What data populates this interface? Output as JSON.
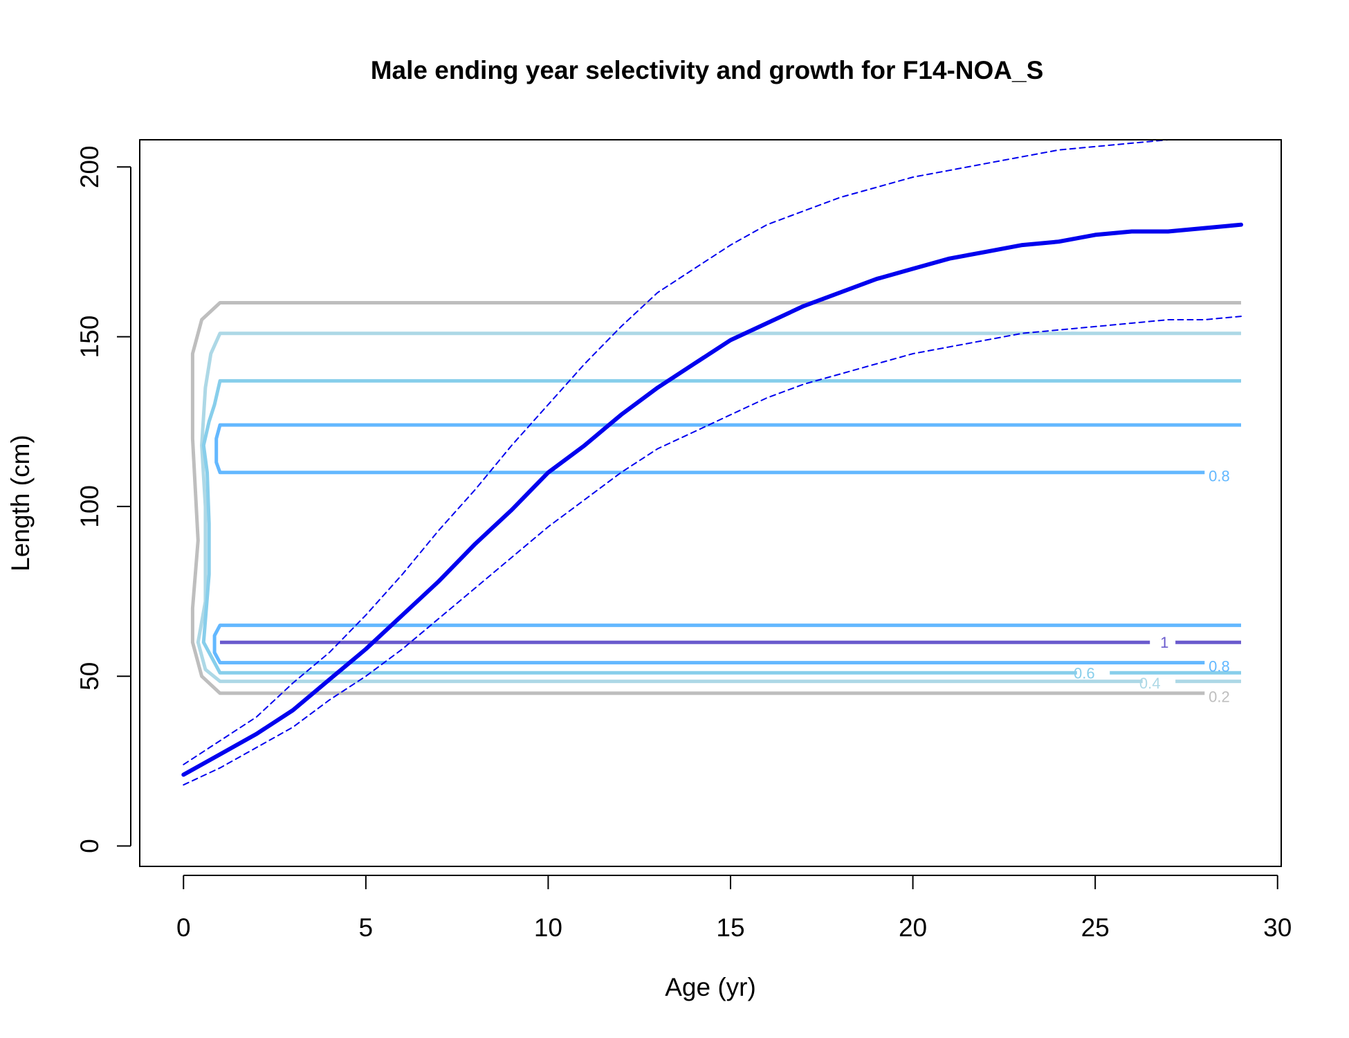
{
  "chart_data": {
    "type": "line",
    "title": "Male ending year selectivity and growth for F14-NOA_S",
    "xlabel": "Age (yr)",
    "ylabel": "Length (cm)",
    "xlim": [
      -1.2,
      30.1
    ],
    "ylim": [
      -6,
      208
    ],
    "x_ticks": [
      0,
      5,
      10,
      15,
      20,
      25,
      30
    ],
    "y_ticks": [
      0,
      50,
      100,
      150,
      200
    ],
    "grid": false,
    "colors": {
      "mean": "#0000ee",
      "ci": "#0000ee",
      "contour_0_2": "#bebebe",
      "contour_0_4": "#add8e6",
      "contour_0_6": "#87ceeb",
      "contour_0_8": "#63b8ff",
      "contour_1": "#6a5acd"
    },
    "series": [
      {
        "id": "mean",
        "x": [
          0,
          1,
          2,
          3,
          4,
          5,
          6,
          7,
          8,
          9,
          10,
          11,
          12,
          13,
          14,
          15,
          16,
          17,
          18,
          19,
          20,
          21,
          22,
          23,
          24,
          25,
          26,
          27,
          28,
          29
        ],
        "values": [
          21,
          27,
          33,
          40,
          49,
          58,
          68,
          78,
          89,
          99,
          110,
          118,
          127,
          135,
          142,
          149,
          154,
          159,
          163,
          167,
          170,
          173,
          175,
          177,
          178,
          180,
          181,
          181,
          182,
          183
        ]
      },
      {
        "id": "upper",
        "x": [
          0,
          1,
          2,
          3,
          4,
          5,
          6,
          7,
          8,
          9,
          10,
          11,
          12,
          13,
          14,
          15,
          16,
          17,
          18,
          19,
          20,
          21,
          22,
          23,
          24,
          25,
          26,
          27,
          28,
          29
        ],
        "values": [
          24,
          31,
          38,
          48,
          57,
          68,
          80,
          93,
          105,
          118,
          130,
          142,
          153,
          163,
          170,
          177,
          183,
          187,
          191,
          194,
          197,
          199,
          201,
          203,
          205,
          206,
          207,
          208,
          209,
          210
        ]
      },
      {
        "id": "lower",
        "x": [
          0,
          1,
          2,
          3,
          4,
          5,
          6,
          7,
          8,
          9,
          10,
          11,
          12,
          13,
          14,
          15,
          16,
          17,
          18,
          19,
          20,
          21,
          22,
          23,
          24,
          25,
          26,
          27,
          28,
          29
        ],
        "values": [
          18,
          23,
          29,
          35,
          43,
          50,
          58,
          67,
          76,
          85,
          94,
          102,
          110,
          117,
          122,
          127,
          132,
          136,
          139,
          142,
          145,
          147,
          149,
          151,
          152,
          153,
          154,
          155,
          155,
          156
        ]
      }
    ],
    "contours": [
      {
        "level": "0.2",
        "label": "0.2",
        "x": [
          29,
          1,
          0.5,
          0.25,
          0.25,
          0.4,
          0.25,
          0.25,
          0.5,
          1,
          28
        ],
        "y": [
          160,
          160,
          155,
          145,
          120,
          90,
          70,
          60,
          50,
          45,
          45
        ],
        "label_at": [
          28.4,
          44
        ]
      },
      {
        "level": "0.4",
        "label": "0.4",
        "x": [
          29,
          1,
          0.75,
          0.6,
          0.5,
          0.6,
          0.6,
          0.6,
          0.4,
          0.6,
          1,
          26.3
        ],
        "y": [
          151,
          151,
          145,
          135,
          118,
          100,
          85,
          72,
          60,
          52,
          48.5,
          48.5
        ],
        "gap": [
          26.3,
          27.2
        ],
        "label_at": [
          26.5,
          48
        ]
      },
      {
        "level": "0.6",
        "label": "0.6",
        "x": [
          29,
          1,
          0.85,
          0.7,
          0.55,
          0.65,
          0.7,
          0.7,
          0.55,
          1,
          24.5
        ],
        "y": [
          137,
          137,
          130,
          125,
          118,
          110,
          95,
          80,
          60,
          51,
          51
        ],
        "gap": [
          24.5,
          25.4
        ],
        "label_at": [
          24.7,
          51
        ]
      },
      {
        "level": "0.8",
        "label": "0.8",
        "x": [
          29,
          1,
          0.9,
          0.9,
          1,
          28
        ],
        "y": [
          124,
          124,
          120,
          113,
          110,
          110
        ],
        "label_at": [
          28.4,
          109
        ]
      },
      {
        "level": "0.8",
        "label": "0.8",
        "x": [
          29,
          1,
          0.85,
          0.85,
          1,
          28
        ],
        "y": [
          65,
          65,
          62,
          57,
          54,
          54
        ],
        "label_at": [
          28.4,
          53
        ]
      },
      {
        "level": "1",
        "label": "1",
        "x": [
          1,
          26.5
        ],
        "y": [
          60,
          60
        ],
        "gap": [
          26.5,
          27.2
        ],
        "label_at": [
          26.9,
          60
        ]
      }
    ]
  }
}
